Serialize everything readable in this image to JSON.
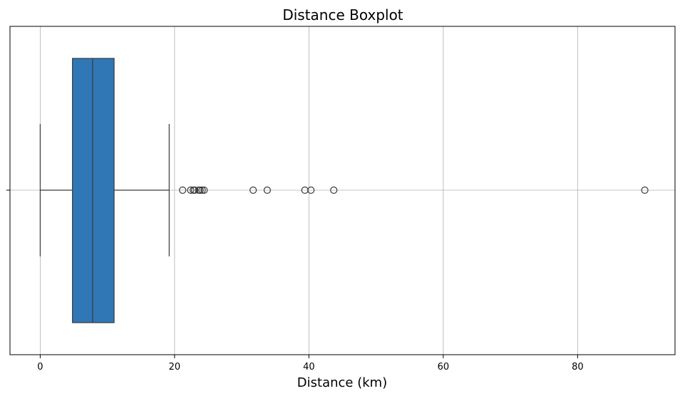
{
  "chart_data": {
    "type": "boxplot",
    "orientation": "horizontal",
    "title": "Distance Boxplot",
    "xlabel": "Distance (km)",
    "ylabel": "",
    "xlim": [
      -4.5,
      94.5
    ],
    "xticks": [
      0,
      20,
      40,
      60,
      80
    ],
    "xtick_labels": [
      "0",
      "20",
      "40",
      "60",
      "80"
    ],
    "grid": true,
    "box_color": "#2f78b5",
    "stats": {
      "whisker_low": 0,
      "q1": 4.8,
      "median": 7.8,
      "q3": 11.0,
      "whisker_high": 19.2
    },
    "outliers": [
      21.2,
      22.4,
      22.8,
      23.0,
      23.6,
      23.8,
      24.1,
      24.4,
      31.7,
      33.8,
      39.4,
      40.3,
      43.7,
      90.0
    ]
  }
}
